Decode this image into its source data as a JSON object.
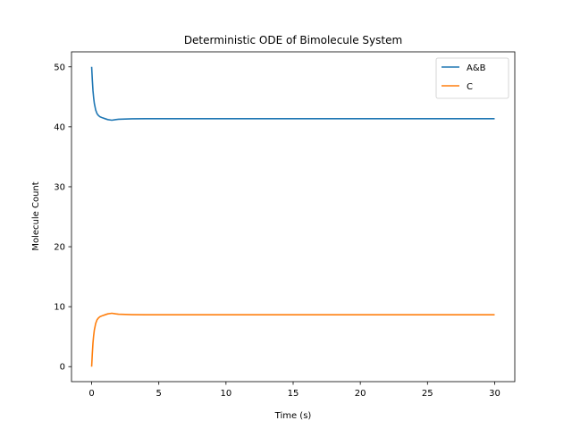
{
  "chart_data": {
    "type": "line",
    "title": "Deterministic ODE of Bimolecule System",
    "xlabel": "Time (s)",
    "ylabel": "Molecule Count",
    "xlim": [
      -1.5,
      31.5
    ],
    "ylim": [
      -2.5,
      52.5
    ],
    "xticks": [
      0,
      5,
      10,
      15,
      20,
      25,
      30
    ],
    "yticks": [
      0,
      10,
      20,
      30,
      40,
      50
    ],
    "grid": false,
    "legend": "top-right",
    "series": [
      {
        "name": "A&B",
        "color": "#1f77b4",
        "x": [
          0,
          0.05,
          0.1,
          0.15,
          0.2,
          0.3,
          0.4,
          0.5,
          0.6,
          0.8,
          1.0,
          1.2,
          1.5,
          1.8,
          2.0,
          2.5,
          3.0,
          4.0,
          5.0,
          7.5,
          10,
          15,
          20,
          25,
          30
        ],
        "y": [
          50,
          47.8,
          46.0,
          44.8,
          43.9,
          42.8,
          42.2,
          41.9,
          41.7,
          41.5,
          41.35,
          41.2,
          41.1,
          41.2,
          41.25,
          41.3,
          41.33,
          41.35,
          41.35,
          41.35,
          41.35,
          41.35,
          41.35,
          41.35,
          41.35
        ]
      },
      {
        "name": "C",
        "color": "#ff7f0e",
        "x": [
          0,
          0.05,
          0.1,
          0.15,
          0.2,
          0.3,
          0.4,
          0.5,
          0.6,
          0.8,
          1.0,
          1.2,
          1.5,
          1.8,
          2.0,
          2.5,
          3.0,
          4.0,
          5.0,
          7.5,
          10,
          15,
          20,
          25,
          30
        ],
        "y": [
          0,
          2.2,
          4.0,
          5.2,
          6.1,
          7.2,
          7.8,
          8.1,
          8.3,
          8.5,
          8.65,
          8.8,
          8.9,
          8.8,
          8.75,
          8.7,
          8.67,
          8.65,
          8.65,
          8.65,
          8.65,
          8.65,
          8.65,
          8.65,
          8.65
        ]
      }
    ]
  }
}
